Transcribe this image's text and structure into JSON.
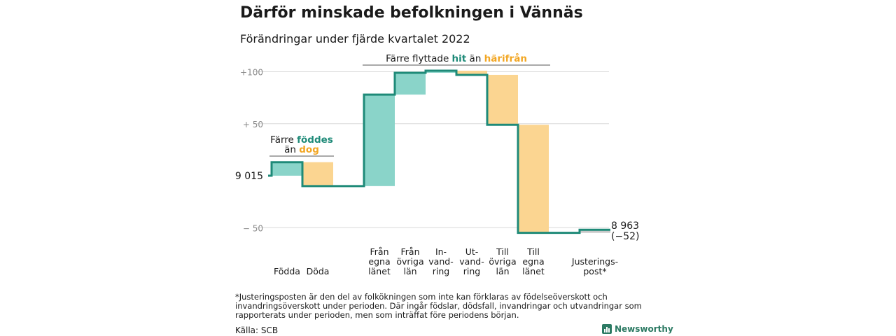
{
  "title": "Därför minskade befolkningen i Vännäs",
  "subtitle": "Förändringar under fjärde kvartalet 2022",
  "chart_data": {
    "type": "waterfall",
    "start_label": "9 015",
    "start_value": 9015,
    "end_label_value": "8 963",
    "end_label_change": "(−52)",
    "y_ticks": [
      {
        "value": 100,
        "label": "+100"
      },
      {
        "value": 50,
        "label": "+ 50"
      },
      {
        "value": 0,
        "label": "9 015"
      },
      {
        "value": -50,
        "label": "− 50"
      }
    ],
    "ylim": [
      -55,
      105
    ],
    "steps": [
      {
        "category": "Födda",
        "change": 13,
        "color": "#8ad4c9"
      },
      {
        "category": "Döda",
        "change": -23,
        "color": "#fbd591"
      },
      {
        "category": "Från egna länet",
        "change": 88,
        "color": "#8ad4c9"
      },
      {
        "category": "Från övriga län",
        "change": 21,
        "color": "#8ad4c9"
      },
      {
        "category": "In-vandring",
        "change": 2,
        "color": "#8ad4c9"
      },
      {
        "category": "Ut-vandring",
        "change": -4,
        "color": "#fbd591"
      },
      {
        "category": "Till övriga län",
        "change": -48,
        "color": "#fbd591"
      },
      {
        "category": "Till egna länet",
        "change": -104,
        "color": "#fbd591"
      },
      {
        "category": "Justerings-post*",
        "change": 3,
        "color": "#c8c8c8"
      }
    ],
    "category_labels": [
      [
        "Födda"
      ],
      [
        "Döda"
      ],
      [
        "Från",
        "egna",
        "länet"
      ],
      [
        "Från",
        "övriga",
        "län"
      ],
      [
        "In-",
        "vand-",
        "ring"
      ],
      [
        "Ut-",
        "vand-",
        "ring"
      ],
      [
        "Till",
        "övriga",
        "län"
      ],
      [
        "Till",
        "egna",
        "länet"
      ],
      [
        "Justerings-",
        "post*"
      ]
    ],
    "annotations": {
      "births": {
        "line1_a": "Färre ",
        "line1_b": "föddes",
        "line2_a": "än ",
        "line2_b": "dog"
      },
      "moves": {
        "a": "Färre flyttade ",
        "b": "hit",
        "c": " än ",
        "d": "härifrån"
      }
    },
    "colors": {
      "increase": "#8ad4c9",
      "decrease": "#fbd591",
      "adjustment": "#c8c8c8",
      "line": "#1e8a78",
      "teal_text": "#1e8a78",
      "orange_text": "#f2a623",
      "grid": "#d9d9d9"
    }
  },
  "footnote": "*Justeringsposten är den del av folkökningen som inte kan förklaras av födelseöverskott och invandringsöverskott under perioden. Där ingår födslar, dödsfall, invandringar och utvandringar som rapporterats under perioden, men som inträffat före periodens början.",
  "source": "Källa: SCB",
  "logo": {
    "text": "Newsworthy",
    "icon": "bar-chart-logo-icon",
    "color": "#2c7a63"
  }
}
